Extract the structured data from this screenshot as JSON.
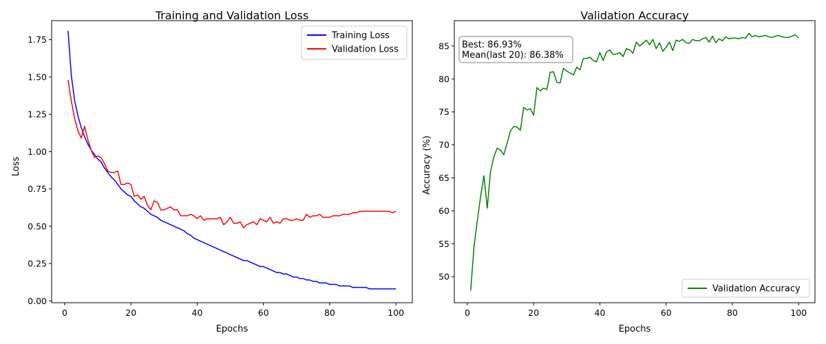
{
  "chart_data": [
    {
      "type": "line",
      "title": "Training and Validation Loss",
      "xlabel": "Epochs",
      "ylabel": "Loss",
      "xlim": [
        -3.95,
        104.95
      ],
      "ylim": [
        -0.0125,
        1.8775
      ],
      "xticks": [
        0,
        20,
        40,
        60,
        80,
        100
      ],
      "yticks": [
        0.0,
        0.25,
        0.5,
        0.75,
        1.0,
        1.25,
        1.5,
        1.75
      ],
      "ytick_labels": [
        "0.00",
        "0.25",
        "0.50",
        "0.75",
        "1.00",
        "1.25",
        "1.50",
        "1.75"
      ],
      "grid": false,
      "legend_position": "top-right",
      "series": [
        {
          "name": "Training Loss",
          "color": "#0000ff",
          "x": [
            1,
            2,
            3,
            4,
            5,
            6,
            7,
            8,
            9,
            10,
            11,
            12,
            13,
            14,
            15,
            16,
            17,
            18,
            19,
            20,
            21,
            22,
            23,
            24,
            25,
            26,
            27,
            28,
            29,
            30,
            31,
            32,
            33,
            34,
            35,
            36,
            37,
            38,
            39,
            40,
            41,
            42,
            43,
            44,
            45,
            46,
            47,
            48,
            49,
            50,
            51,
            52,
            53,
            54,
            55,
            56,
            57,
            58,
            59,
            60,
            61,
            62,
            63,
            64,
            65,
            66,
            67,
            68,
            69,
            70,
            71,
            72,
            73,
            74,
            75,
            76,
            77,
            78,
            79,
            80,
            81,
            82,
            83,
            84,
            85,
            86,
            87,
            88,
            89,
            90,
            91,
            92,
            93,
            94,
            95,
            96,
            97,
            98,
            99,
            100
          ],
          "values": [
            1.81,
            1.51,
            1.34,
            1.24,
            1.16,
            1.1,
            1.05,
            1.01,
            0.98,
            0.95,
            0.93,
            0.89,
            0.86,
            0.83,
            0.81,
            0.78,
            0.75,
            0.73,
            0.71,
            0.7,
            0.67,
            0.65,
            0.63,
            0.62,
            0.6,
            0.58,
            0.57,
            0.56,
            0.54,
            0.53,
            0.52,
            0.51,
            0.5,
            0.49,
            0.48,
            0.47,
            0.45,
            0.44,
            0.42,
            0.41,
            0.4,
            0.39,
            0.38,
            0.37,
            0.36,
            0.35,
            0.34,
            0.33,
            0.32,
            0.31,
            0.3,
            0.29,
            0.28,
            0.27,
            0.27,
            0.26,
            0.25,
            0.24,
            0.23,
            0.23,
            0.22,
            0.21,
            0.2,
            0.19,
            0.19,
            0.18,
            0.18,
            0.17,
            0.16,
            0.16,
            0.15,
            0.15,
            0.14,
            0.14,
            0.13,
            0.13,
            0.12,
            0.12,
            0.12,
            0.11,
            0.11,
            0.11,
            0.1,
            0.1,
            0.1,
            0.1,
            0.09,
            0.09,
            0.09,
            0.09,
            0.09,
            0.08,
            0.08,
            0.08,
            0.08,
            0.08,
            0.08,
            0.08,
            0.08,
            0.08
          ]
        },
        {
          "name": "Validation Loss",
          "color": "#ff0000",
          "x": [
            1,
            2,
            3,
            4,
            5,
            6,
            7,
            8,
            9,
            10,
            11,
            12,
            13,
            14,
            15,
            16,
            17,
            18,
            19,
            20,
            21,
            22,
            23,
            24,
            25,
            26,
            27,
            28,
            29,
            30,
            31,
            32,
            33,
            34,
            35,
            36,
            37,
            38,
            39,
            40,
            41,
            42,
            43,
            44,
            45,
            46,
            47,
            48,
            49,
            50,
            51,
            52,
            53,
            54,
            55,
            56,
            57,
            58,
            59,
            60,
            61,
            62,
            63,
            64,
            65,
            66,
            67,
            68,
            69,
            70,
            71,
            72,
            73,
            74,
            75,
            76,
            77,
            78,
            79,
            80,
            81,
            82,
            83,
            84,
            85,
            86,
            87,
            88,
            89,
            90,
            91,
            92,
            93,
            94,
            95,
            96,
            97,
            98,
            99,
            100
          ],
          "values": [
            1.48,
            1.34,
            1.22,
            1.14,
            1.09,
            1.17,
            1.08,
            1.01,
            0.96,
            0.97,
            0.96,
            0.92,
            0.87,
            0.86,
            0.86,
            0.87,
            0.78,
            0.78,
            0.79,
            0.78,
            0.7,
            0.71,
            0.68,
            0.7,
            0.64,
            0.61,
            0.67,
            0.66,
            0.61,
            0.61,
            0.62,
            0.63,
            0.61,
            0.61,
            0.57,
            0.57,
            0.57,
            0.58,
            0.57,
            0.55,
            0.57,
            0.54,
            0.55,
            0.55,
            0.55,
            0.55,
            0.56,
            0.51,
            0.53,
            0.56,
            0.52,
            0.52,
            0.53,
            0.49,
            0.51,
            0.52,
            0.53,
            0.51,
            0.55,
            0.54,
            0.53,
            0.56,
            0.52,
            0.53,
            0.52,
            0.55,
            0.55,
            0.54,
            0.54,
            0.55,
            0.54,
            0.54,
            0.58,
            0.56,
            0.57,
            0.57,
            0.58,
            0.56,
            0.56,
            0.56,
            0.57,
            0.57,
            0.57,
            0.58,
            0.58,
            0.58,
            0.59,
            0.59,
            0.6,
            0.6,
            0.6,
            0.6,
            0.6,
            0.6,
            0.6,
            0.6,
            0.6,
            0.6,
            0.59,
            0.6
          ]
        }
      ]
    },
    {
      "type": "line",
      "title": "Validation Accuracy",
      "xlabel": "Epochs",
      "ylabel": "Accuracy (%)",
      "xlim": [
        -3.95,
        104.95
      ],
      "ylim": [
        46.05,
        88.85
      ],
      "xticks": [
        0,
        20,
        40,
        60,
        80,
        100
      ],
      "yticks": [
        50,
        55,
        60,
        65,
        70,
        75,
        80,
        85
      ],
      "grid": false,
      "legend_position": "bottom-right",
      "annotation": {
        "line1": "Best: 86.93%",
        "line2": "Mean(last 20): 86.38%",
        "position": "top-left"
      },
      "series": [
        {
          "name": "Validation Accuracy",
          "color": "#008000",
          "x": [
            1,
            2,
            3,
            4,
            5,
            6,
            7,
            8,
            9,
            10,
            11,
            12,
            13,
            14,
            15,
            16,
            17,
            18,
            19,
            20,
            21,
            22,
            23,
            24,
            25,
            26,
            27,
            28,
            29,
            30,
            31,
            32,
            33,
            34,
            35,
            36,
            37,
            38,
            39,
            40,
            41,
            42,
            43,
            44,
            45,
            46,
            47,
            48,
            49,
            50,
            51,
            52,
            53,
            54,
            55,
            56,
            57,
            58,
            59,
            60,
            61,
            62,
            63,
            64,
            65,
            66,
            67,
            68,
            69,
            70,
            71,
            72,
            73,
            74,
            75,
            76,
            77,
            78,
            79,
            80,
            81,
            82,
            83,
            84,
            85,
            86,
            87,
            88,
            89,
            90,
            91,
            92,
            93,
            94,
            95,
            96,
            97,
            98,
            99,
            100
          ],
          "values": [
            47.9,
            54.6,
            58.5,
            62.2,
            65.3,
            60.4,
            66.0,
            68.2,
            69.5,
            69.2,
            68.5,
            70.3,
            72.1,
            72.8,
            72.7,
            72.2,
            75.7,
            75.3,
            75.5,
            74.5,
            78.7,
            78.2,
            78.6,
            78.4,
            81.0,
            81.1,
            79.5,
            79.4,
            81.6,
            81.2,
            80.9,
            80.6,
            81.8,
            81.4,
            83.1,
            83.1,
            83.3,
            82.8,
            82.6,
            84.0,
            82.8,
            84.1,
            84.4,
            83.7,
            83.8,
            84.0,
            83.4,
            84.6,
            84.4,
            83.9,
            85.6,
            85.0,
            85.4,
            85.9,
            85.2,
            86.0,
            84.6,
            85.5,
            84.2,
            84.8,
            85.6,
            84.3,
            85.9,
            85.7,
            86.0,
            85.5,
            85.4,
            86.0,
            85.8,
            85.8,
            86.1,
            86.3,
            85.6,
            86.5,
            85.5,
            86.1,
            85.8,
            86.4,
            86.1,
            86.2,
            86.2,
            86.1,
            86.3,
            86.2,
            86.93,
            86.4,
            86.6,
            86.4,
            86.5,
            86.6,
            86.4,
            86.3,
            86.5,
            86.6,
            86.4,
            86.3,
            86.3,
            86.5,
            86.7,
            86.2
          ]
        }
      ]
    }
  ]
}
